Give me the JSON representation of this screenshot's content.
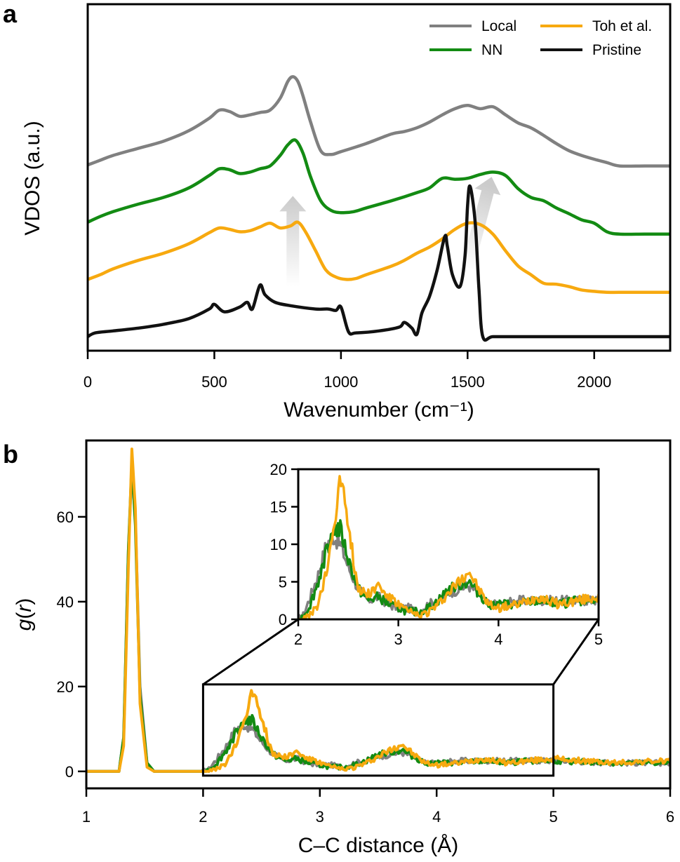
{
  "chart_data": [
    {
      "panel": "a",
      "type": "line",
      "xlabel": "Wavenumber (cm⁻¹)",
      "ylabel": "VDOS (a.u.)",
      "xlim": [
        0,
        2300
      ],
      "xticks": [
        "0",
        "500",
        "1000",
        "1500",
        "2000"
      ],
      "y_ticks_shown": false,
      "legend_position": "top-right",
      "legend": [
        "Local",
        "NN",
        "Toh et al.",
        "Pristine"
      ],
      "series": [
        {
          "name": "Local",
          "color": "#808080",
          "offset": 3,
          "x": [
            0,
            50,
            100,
            200,
            300,
            400,
            480,
            520,
            560,
            600,
            640,
            680,
            720,
            760,
            790,
            810,
            830,
            850,
            880,
            920,
            960,
            1000,
            1100,
            1200,
            1250,
            1300,
            1350,
            1400,
            1450,
            1500,
            1550,
            1600,
            1650,
            1700,
            1750,
            1800,
            1850,
            1900,
            1950,
            2000,
            2050,
            2100,
            2200,
            2300
          ],
          "y": [
            0.0,
            0.1,
            0.2,
            0.35,
            0.5,
            0.72,
            0.98,
            1.15,
            1.12,
            1.02,
            1.05,
            1.1,
            1.15,
            1.4,
            1.75,
            1.85,
            1.75,
            1.45,
            0.9,
            0.3,
            0.22,
            0.28,
            0.45,
            0.65,
            0.7,
            0.78,
            0.9,
            1.05,
            1.18,
            1.25,
            1.18,
            1.22,
            1.05,
            0.88,
            0.78,
            0.62,
            0.45,
            0.3,
            0.2,
            0.12,
            0.05,
            -0.02,
            -0.02,
            -0.02
          ]
        },
        {
          "name": "NN",
          "color": "#138b13",
          "offset": 2,
          "x": [
            0,
            50,
            100,
            200,
            300,
            400,
            480,
            520,
            560,
            600,
            640,
            680,
            720,
            760,
            790,
            820,
            850,
            880,
            920,
            960,
            1000,
            1050,
            1100,
            1200,
            1300,
            1350,
            1400,
            1450,
            1500,
            1550,
            1600,
            1650,
            1700,
            1750,
            1800,
            1850,
            1900,
            1950,
            2000,
            2050,
            2100,
            2200,
            2300
          ],
          "y": [
            0.0,
            0.12,
            0.22,
            0.38,
            0.52,
            0.72,
            0.98,
            1.12,
            1.1,
            1.02,
            1.05,
            1.12,
            1.18,
            1.4,
            1.62,
            1.72,
            1.45,
            0.95,
            0.45,
            0.25,
            0.2,
            0.22,
            0.3,
            0.45,
            0.62,
            0.72,
            0.92,
            0.9,
            0.92,
            1.0,
            1.05,
            0.98,
            0.7,
            0.52,
            0.45,
            0.3,
            0.18,
            0.05,
            -0.02,
            -0.2,
            -0.25,
            -0.25,
            -0.25
          ]
        },
        {
          "name": "Toh et al.",
          "color": "#f7a90f",
          "offset": 1,
          "x": [
            0,
            50,
            100,
            200,
            300,
            400,
            480,
            520,
            560,
            600,
            640,
            680,
            720,
            760,
            800,
            830,
            860,
            900,
            940,
            980,
            1020,
            1060,
            1100,
            1200,
            1250,
            1300,
            1350,
            1400,
            1450,
            1500,
            1550,
            1600,
            1650,
            1700,
            1750,
            1800,
            1850,
            1900,
            1950,
            2000,
            2050,
            2100,
            2200,
            2300
          ],
          "y": [
            0.0,
            0.1,
            0.22,
            0.4,
            0.55,
            0.75,
            0.98,
            1.08,
            1.05,
            1.0,
            1.02,
            1.1,
            1.18,
            1.08,
            1.12,
            1.2,
            1.0,
            0.6,
            0.2,
            0.05,
            0.0,
            0.02,
            0.1,
            0.28,
            0.4,
            0.55,
            0.68,
            0.85,
            1.05,
            1.18,
            1.15,
            0.95,
            0.6,
            0.28,
            0.1,
            -0.08,
            -0.1,
            -0.15,
            -0.22,
            -0.25,
            -0.27,
            -0.27,
            -0.27,
            -0.27
          ]
        },
        {
          "name": "Pristine",
          "color": "#111111",
          "offset": 0,
          "x": [
            0,
            30,
            100,
            200,
            300,
            400,
            480,
            500,
            540,
            600,
            630,
            650,
            680,
            700,
            740,
            800,
            900,
            950,
            980,
            1000,
            1030,
            1060,
            1150,
            1230,
            1250,
            1280,
            1300,
            1320,
            1350,
            1380,
            1410,
            1420,
            1440,
            1470,
            1490,
            1500,
            1510,
            1530,
            1545,
            1560,
            1600,
            1700,
            2000,
            2300
          ],
          "y": [
            0.0,
            0.08,
            0.12,
            0.18,
            0.26,
            0.38,
            0.58,
            0.68,
            0.52,
            0.62,
            0.72,
            0.58,
            1.08,
            0.88,
            0.72,
            0.65,
            0.58,
            0.58,
            0.55,
            0.62,
            0.1,
            0.08,
            0.12,
            0.2,
            0.3,
            0.18,
            0.05,
            0.5,
            0.85,
            1.4,
            2.1,
            1.9,
            1.3,
            1.05,
            1.7,
            2.75,
            3.15,
            2.4,
            1.0,
            0.0,
            0.0,
            0.0,
            0.0,
            0.0
          ]
        }
      ],
      "annotations": [
        {
          "type": "arrow",
          "color": "#d9d9d9",
          "from": [
            810,
            1.05
          ],
          "to": [
            810,
            2.95
          ]
        },
        {
          "type": "arrow",
          "color": "#d9d9d9",
          "from": [
            1500,
            1.45
          ],
          "to": [
            1595,
            3.35
          ]
        }
      ]
    },
    {
      "panel": "b",
      "type": "line",
      "xlabel": "C–C distance (Å)",
      "ylabel_italic_part": "g",
      "ylabel_rest_open": "(",
      "ylabel_arg": "r",
      "ylabel_rest_close": ")",
      "xlim": [
        1,
        6
      ],
      "ylim": [
        -4,
        78
      ],
      "xticks": [
        1,
        2,
        3,
        4,
        5,
        6
      ],
      "yticks": [
        0,
        20,
        40,
        60
      ],
      "series": [
        {
          "name": "Local",
          "color": "#808080",
          "x": [
            1.0,
            1.28,
            1.32,
            1.36,
            1.39,
            1.42,
            1.46,
            1.52,
            1.58,
            2.0,
            2.05,
            2.12,
            2.2,
            2.28,
            2.35,
            2.42,
            2.5,
            2.6,
            2.7,
            2.8,
            2.9,
            3.0,
            3.1,
            3.2,
            3.3,
            3.4,
            3.5,
            3.6,
            3.7,
            3.8,
            3.9,
            4.0,
            4.2,
            4.4,
            4.6,
            4.8,
            5.0,
            5.5,
            6.0
          ],
          "y": [
            0,
            0,
            8,
            52,
            71,
            60,
            20,
            2,
            0,
            0,
            0.5,
            3,
            6,
            10,
            11,
            10,
            7,
            4,
            2.5,
            3,
            2,
            1.5,
            1.5,
            1,
            2,
            2.5,
            3.5,
            4,
            4.5,
            3.5,
            2,
            2,
            2.5,
            2.5,
            2.5,
            2.5,
            2.5,
            2,
            2
          ]
        },
        {
          "name": "NN",
          "color": "#138b13",
          "x": [
            1.0,
            1.28,
            1.32,
            1.36,
            1.39,
            1.42,
            1.46,
            1.52,
            1.58,
            2.0,
            2.05,
            2.12,
            2.2,
            2.28,
            2.35,
            2.42,
            2.5,
            2.6,
            2.7,
            2.8,
            2.9,
            3.0,
            3.1,
            3.2,
            3.3,
            3.4,
            3.5,
            3.6,
            3.7,
            3.8,
            3.9,
            4.0,
            4.2,
            4.4,
            4.6,
            4.8,
            5.0,
            5.5,
            6.0
          ],
          "y": [
            0,
            0,
            8,
            52,
            73,
            58,
            18,
            2,
            0,
            0,
            0.3,
            2,
            5,
            9,
            12,
            12,
            8,
            4,
            2.5,
            3,
            2,
            1.5,
            1,
            1,
            1.5,
            2.5,
            4,
            4.5,
            5,
            3.5,
            2,
            2,
            2,
            2.5,
            2,
            2.5,
            2.5,
            2,
            2
          ]
        },
        {
          "name": "Toh et al.",
          "color": "#f7a90f",
          "x": [
            1.0,
            1.28,
            1.32,
            1.36,
            1.39,
            1.42,
            1.46,
            1.52,
            1.58,
            2.0,
            2.05,
            2.12,
            2.2,
            2.28,
            2.35,
            2.4,
            2.44,
            2.48,
            2.55,
            2.6,
            2.7,
            2.8,
            2.9,
            3.0,
            3.1,
            3.2,
            3.3,
            3.4,
            3.5,
            3.6,
            3.7,
            3.8,
            3.9,
            4.0,
            4.2,
            4.4,
            4.6,
            4.8,
            5.0,
            5.5,
            6.0
          ],
          "y": [
            0,
            0,
            6,
            48,
            76,
            62,
            16,
            1,
            0,
            0,
            0,
            0.5,
            2,
            6,
            12,
            17,
            19,
            15,
            8,
            4,
            3.5,
            4.5,
            3,
            2,
            1,
            0.5,
            1,
            2,
            3.5,
            5,
            6.5,
            4,
            2,
            1.5,
            2,
            3,
            2,
            2.5,
            3,
            2,
            2.5
          ]
        }
      ],
      "inset": {
        "xlim": [
          2,
          5
        ],
        "ylim": [
          0,
          20
        ],
        "xticks": [
          2,
          3,
          4,
          5
        ],
        "yticks": [
          0,
          5,
          10,
          15,
          20
        ],
        "zoom_box": {
          "x": [
            2,
            5
          ],
          "y": [
            -1,
            20.5
          ]
        }
      }
    }
  ],
  "panel_letters": {
    "a": "a",
    "b": "b"
  }
}
